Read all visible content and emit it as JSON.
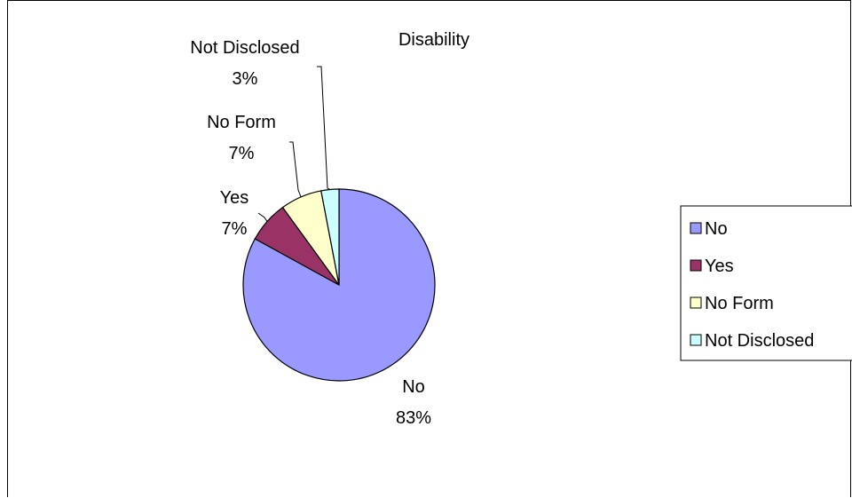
{
  "chart_data": {
    "type": "pie",
    "title": "Disability",
    "categories": [
      "No",
      "Yes",
      "No Form",
      "Not Disclosed"
    ],
    "values": [
      83,
      7,
      7,
      3
    ],
    "value_labels": [
      "83%",
      "7%",
      "7%",
      "3%"
    ],
    "colors": [
      "#9999FF",
      "#993366",
      "#FFFFCC",
      "#CCFFFF"
    ],
    "legend": {
      "position": "right",
      "entries": [
        "No",
        "Yes",
        "No Form",
        "Not Disclosed"
      ]
    }
  }
}
